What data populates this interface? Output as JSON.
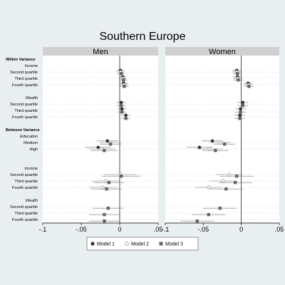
{
  "chart_data": {
    "type": "scatter",
    "title": "Southern Europe",
    "panels": [
      {
        "name": "Men"
      },
      {
        "name": "Women"
      }
    ],
    "xlim": [
      -0.1,
      0.05
    ],
    "xticks": [
      -0.1,
      -0.05,
      0,
      0.05
    ],
    "xtick_labels": [
      "-.1",
      "-.05",
      "0",
      ".05"
    ],
    "rows": [
      {
        "label": "Within Variance",
        "kind": "header"
      },
      {
        "label": "Income",
        "kind": "sub"
      },
      {
        "label": "Second quartile",
        "kind": "row"
      },
      {
        "label": "Third quartile",
        "kind": "row"
      },
      {
        "label": "Fourth quartile",
        "kind": "row"
      },
      {
        "label": "",
        "kind": "gap"
      },
      {
        "label": "Wealth",
        "kind": "sub"
      },
      {
        "label": "Second quartile",
        "kind": "row"
      },
      {
        "label": "Third quartile",
        "kind": "row"
      },
      {
        "label": "Fourth quartile",
        "kind": "row"
      },
      {
        "label": "",
        "kind": "gap"
      },
      {
        "label": "Between Variance",
        "kind": "header"
      },
      {
        "label": "Education",
        "kind": "sub"
      },
      {
        "label": "Medium",
        "kind": "row"
      },
      {
        "label": "High",
        "kind": "row"
      },
      {
        "label": "",
        "kind": "gap"
      },
      {
        "label": "",
        "kind": "gap"
      },
      {
        "label": "Income",
        "kind": "sub"
      },
      {
        "label": "Second quartile",
        "kind": "row"
      },
      {
        "label": "Third quartile",
        "kind": "row"
      },
      {
        "label": "Fourth quartile",
        "kind": "row"
      },
      {
        "label": "",
        "kind": "gap"
      },
      {
        "label": "Wealth",
        "kind": "sub"
      },
      {
        "label": "Second quartile",
        "kind": "row"
      },
      {
        "label": "Third quartile",
        "kind": "row"
      },
      {
        "label": "Fourth quartile",
        "kind": "row"
      }
    ],
    "series": [
      {
        "name": "Model 1",
        "marker": "circle",
        "color": "#333333"
      },
      {
        "name": "Model 2",
        "marker": "diamond",
        "color": "#aaaaaa"
      },
      {
        "name": "Model 3",
        "marker": "square",
        "color": "#666666"
      }
    ],
    "points": [
      {
        "panel": 0,
        "row": 2,
        "series": 0,
        "x": 0.001,
        "lo": -0.004,
        "hi": 0.006
      },
      {
        "panel": 0,
        "row": 2,
        "series": 1,
        "x": 0.001,
        "lo": -0.004,
        "hi": 0.006
      },
      {
        "panel": 0,
        "row": 2,
        "series": 2,
        "x": 0.002,
        "lo": -0.003,
        "hi": 0.007
      },
      {
        "panel": 0,
        "row": 3,
        "series": 0,
        "x": 0.004,
        "lo": -0.001,
        "hi": 0.009
      },
      {
        "panel": 0,
        "row": 3,
        "series": 1,
        "x": 0.004,
        "lo": -0.001,
        "hi": 0.009
      },
      {
        "panel": 0,
        "row": 3,
        "series": 2,
        "x": 0.005,
        "lo": 0.0,
        "hi": 0.01
      },
      {
        "panel": 0,
        "row": 4,
        "series": 0,
        "x": 0.005,
        "lo": 0.0,
        "hi": 0.011
      },
      {
        "panel": 0,
        "row": 4,
        "series": 1,
        "x": 0.005,
        "lo": 0.0,
        "hi": 0.011
      },
      {
        "panel": 0,
        "row": 4,
        "series": 2,
        "x": 0.006,
        "lo": 0.001,
        "hi": 0.012
      },
      {
        "panel": 0,
        "row": 7,
        "series": 0,
        "x": 0.002,
        "lo": -0.004,
        "hi": 0.008
      },
      {
        "panel": 0,
        "row": 7,
        "series": 2,
        "x": 0.002,
        "lo": -0.004,
        "hi": 0.008
      },
      {
        "panel": 0,
        "row": 8,
        "series": 0,
        "x": 0.003,
        "lo": -0.003,
        "hi": 0.009
      },
      {
        "panel": 0,
        "row": 8,
        "series": 2,
        "x": 0.003,
        "lo": -0.003,
        "hi": 0.009
      },
      {
        "panel": 0,
        "row": 9,
        "series": 0,
        "x": 0.008,
        "lo": 0.002,
        "hi": 0.014
      },
      {
        "panel": 0,
        "row": 9,
        "series": 2,
        "x": 0.008,
        "lo": 0.002,
        "hi": 0.014
      },
      {
        "panel": 0,
        "row": 13,
        "series": 0,
        "x": -0.016,
        "lo": -0.03,
        "hi": -0.002
      },
      {
        "panel": 0,
        "row": 13,
        "series": 1,
        "x": -0.012,
        "lo": -0.026,
        "hi": 0.002
      },
      {
        "panel": 0,
        "row": 13,
        "series": 2,
        "x": -0.012,
        "lo": -0.026,
        "hi": 0.002
      },
      {
        "panel": 0,
        "row": 14,
        "series": 0,
        "x": -0.028,
        "lo": -0.045,
        "hi": -0.011
      },
      {
        "panel": 0,
        "row": 14,
        "series": 1,
        "x": -0.023,
        "lo": -0.04,
        "hi": -0.006
      },
      {
        "panel": 0,
        "row": 14,
        "series": 2,
        "x": -0.02,
        "lo": -0.037,
        "hi": -0.003
      },
      {
        "panel": 0,
        "row": 18,
        "series": 1,
        "x": 0.001,
        "lo": -0.02,
        "hi": 0.022
      },
      {
        "panel": 0,
        "row": 18,
        "series": 2,
        "x": 0.002,
        "lo": -0.023,
        "hi": 0.027
      },
      {
        "panel": 0,
        "row": 19,
        "series": 1,
        "x": -0.018,
        "lo": -0.036,
        "hi": 0.0
      },
      {
        "panel": 0,
        "row": 19,
        "series": 2,
        "x": -0.014,
        "lo": -0.034,
        "hi": 0.006
      },
      {
        "panel": 0,
        "row": 20,
        "series": 1,
        "x": -0.022,
        "lo": -0.04,
        "hi": -0.004
      },
      {
        "panel": 0,
        "row": 20,
        "series": 2,
        "x": -0.017,
        "lo": -0.037,
        "hi": 0.003
      },
      {
        "panel": 0,
        "row": 23,
        "series": 2,
        "x": -0.015,
        "lo": -0.035,
        "hi": 0.005
      },
      {
        "panel": 0,
        "row": 24,
        "series": 2,
        "x": -0.02,
        "lo": -0.04,
        "hi": 0.0
      },
      {
        "panel": 0,
        "row": 25,
        "series": 2,
        "x": -0.02,
        "lo": -0.04,
        "hi": 0.0
      },
      {
        "panel": 1,
        "row": 2,
        "series": 0,
        "x": -0.006,
        "lo": -0.012,
        "hi": 0.0
      },
      {
        "panel": 1,
        "row": 2,
        "series": 1,
        "x": -0.006,
        "lo": -0.012,
        "hi": 0.0
      },
      {
        "panel": 1,
        "row": 2,
        "series": 2,
        "x": -0.005,
        "lo": -0.011,
        "hi": 0.001
      },
      {
        "panel": 1,
        "row": 3,
        "series": 0,
        "x": -0.005,
        "lo": -0.011,
        "hi": 0.001
      },
      {
        "panel": 1,
        "row": 3,
        "series": 1,
        "x": -0.005,
        "lo": -0.011,
        "hi": 0.001
      },
      {
        "panel": 1,
        "row": 3,
        "series": 2,
        "x": -0.004,
        "lo": -0.01,
        "hi": 0.002
      },
      {
        "panel": 1,
        "row": 4,
        "series": 0,
        "x": 0.009,
        "lo": 0.003,
        "hi": 0.015
      },
      {
        "panel": 1,
        "row": 4,
        "series": 1,
        "x": 0.009,
        "lo": 0.003,
        "hi": 0.015
      },
      {
        "panel": 1,
        "row": 4,
        "series": 2,
        "x": 0.01,
        "lo": 0.004,
        "hi": 0.016
      },
      {
        "panel": 1,
        "row": 7,
        "series": 0,
        "x": 0.002,
        "lo": -0.005,
        "hi": 0.009
      },
      {
        "panel": 1,
        "row": 7,
        "series": 2,
        "x": 0.002,
        "lo": -0.005,
        "hi": 0.009
      },
      {
        "panel": 1,
        "row": 8,
        "series": 0,
        "x": -0.001,
        "lo": -0.008,
        "hi": 0.006
      },
      {
        "panel": 1,
        "row": 8,
        "series": 2,
        "x": -0.001,
        "lo": -0.008,
        "hi": 0.006
      },
      {
        "panel": 1,
        "row": 9,
        "series": 0,
        "x": -0.002,
        "lo": -0.009,
        "hi": 0.005
      },
      {
        "panel": 1,
        "row": 9,
        "series": 2,
        "x": -0.002,
        "lo": -0.009,
        "hi": 0.005
      },
      {
        "panel": 1,
        "row": 13,
        "series": 0,
        "x": -0.038,
        "lo": -0.052,
        "hi": -0.024
      },
      {
        "panel": 1,
        "row": 13,
        "series": 1,
        "x": -0.028,
        "lo": -0.042,
        "hi": -0.014
      },
      {
        "panel": 1,
        "row": 13,
        "series": 2,
        "x": -0.022,
        "lo": -0.036,
        "hi": -0.008
      },
      {
        "panel": 1,
        "row": 14,
        "series": 0,
        "x": -0.055,
        "lo": -0.072,
        "hi": -0.038
      },
      {
        "panel": 1,
        "row": 14,
        "series": 1,
        "x": -0.042,
        "lo": -0.059,
        "hi": -0.025
      },
      {
        "panel": 1,
        "row": 14,
        "series": 2,
        "x": -0.034,
        "lo": -0.051,
        "hi": -0.017
      },
      {
        "panel": 1,
        "row": 18,
        "series": 1,
        "x": -0.016,
        "lo": -0.034,
        "hi": 0.002
      },
      {
        "panel": 1,
        "row": 18,
        "series": 2,
        "x": -0.006,
        "lo": -0.028,
        "hi": 0.016
      },
      {
        "panel": 1,
        "row": 19,
        "series": 1,
        "x": -0.024,
        "lo": -0.042,
        "hi": -0.006
      },
      {
        "panel": 1,
        "row": 19,
        "series": 2,
        "x": -0.008,
        "lo": -0.03,
        "hi": 0.014
      },
      {
        "panel": 1,
        "row": 20,
        "series": 1,
        "x": -0.043,
        "lo": -0.061,
        "hi": -0.025
      },
      {
        "panel": 1,
        "row": 20,
        "series": 2,
        "x": -0.02,
        "lo": -0.042,
        "hi": 0.002
      },
      {
        "panel": 1,
        "row": 23,
        "series": 2,
        "x": -0.028,
        "lo": -0.05,
        "hi": -0.006
      },
      {
        "panel": 1,
        "row": 24,
        "series": 2,
        "x": -0.043,
        "lo": -0.065,
        "hi": -0.021
      },
      {
        "panel": 1,
        "row": 25,
        "series": 2,
        "x": -0.058,
        "lo": -0.08,
        "hi": -0.036
      }
    ],
    "legend": {
      "position": "bottom",
      "labels": [
        "Model 1",
        "Model 2",
        "Model 3"
      ]
    },
    "grid": true
  },
  "colors": {
    "background": "#e9eef1",
    "plot_bg": "#ffffff",
    "header_bg": "#cfcfcf",
    "grid": "#d6dde2"
  }
}
